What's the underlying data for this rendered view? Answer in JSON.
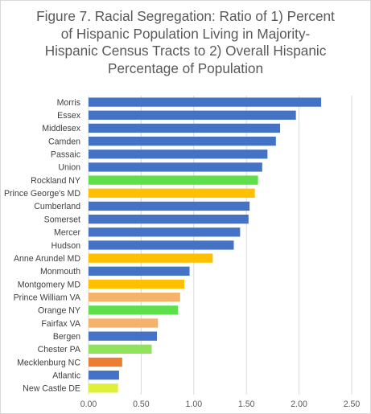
{
  "chart_data": {
    "type": "bar",
    "orientation": "horizontal",
    "title_lines": [
      "Figure 7. Racial Segregation: Ratio of 1) Percent",
      "of Hispanic Population Living in Majority-",
      "Hispanic Census Tracts to 2) Overall Hispanic",
      "Percentage of Population"
    ],
    "categories": [
      "Morris",
      "Essex",
      "Middlesex",
      "Camden",
      "Passaic",
      "Union",
      "Rockland NY",
      "Prince George's MD",
      "Cumberland",
      "Somerset",
      "Mercer",
      "Hudson",
      "Anne Arundel MD",
      "Monmouth",
      "Montgomery MD",
      "Prince William VA",
      "Orange NY",
      "Fairfax VA",
      "Bergen",
      "Chester PA",
      "Mecklenburg NC",
      "Atlantic",
      "New Castle DE"
    ],
    "values": [
      2.21,
      1.97,
      1.82,
      1.78,
      1.7,
      1.65,
      1.61,
      1.58,
      1.53,
      1.52,
      1.44,
      1.38,
      1.18,
      0.96,
      0.91,
      0.87,
      0.85,
      0.66,
      0.65,
      0.6,
      0.32,
      0.29,
      0.28
    ],
    "colors": [
      "#4472c4",
      "#4472c4",
      "#4472c4",
      "#4472c4",
      "#4472c4",
      "#4472c4",
      "#5ee04a",
      "#ffc000",
      "#4472c4",
      "#4472c4",
      "#4472c4",
      "#4472c4",
      "#ffc000",
      "#4472c4",
      "#ffc000",
      "#f4b26a",
      "#5ee04a",
      "#f4b26a",
      "#4472c4",
      "#8fe35a",
      "#ed7d31",
      "#4472c4",
      "#dff03a"
    ],
    "xlim": [
      0,
      2.5
    ],
    "x_ticks": [
      0,
      0.5,
      1.0,
      1.5,
      2.0,
      2.5
    ],
    "x_tick_labels": [
      "0.00",
      "0.50",
      "1.00",
      "1.50",
      "2.00",
      "2.50"
    ],
    "grid": "vertical",
    "legend": "none"
  }
}
